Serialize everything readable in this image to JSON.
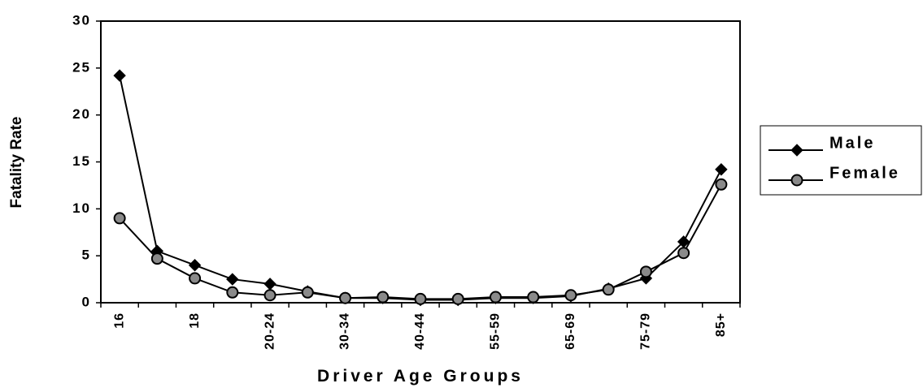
{
  "chart_data": {
    "type": "line",
    "x_label": "Driver Age Groups",
    "y_label": "Fatality Rate",
    "categories": [
      "16",
      null,
      "18",
      null,
      "20-24",
      null,
      "30-34",
      null,
      "40-44",
      null,
      "55-59",
      null,
      "65-69",
      null,
      "75-79",
      null,
      "85+"
    ],
    "series": [
      {
        "name": "Male",
        "color": "#000000",
        "marker": "diamond",
        "values": [
          24.2,
          5.5,
          4.0,
          2.5,
          2.0,
          1.2,
          0.5,
          0.5,
          0.3,
          0.3,
          0.5,
          0.5,
          0.7,
          1.5,
          2.6,
          6.5,
          14.2
        ]
      },
      {
        "name": "Female",
        "color": "#000000",
        "marker": "circle",
        "values": [
          9.0,
          4.7,
          2.6,
          1.1,
          0.8,
          1.1,
          0.5,
          0.6,
          0.4,
          0.4,
          0.6,
          0.6,
          0.8,
          1.4,
          3.3,
          5.3,
          12.6
        ]
      }
    ],
    "ylim": [
      0,
      30
    ],
    "yticks": [
      0,
      5,
      10,
      15,
      20,
      25,
      30
    ],
    "grid": false,
    "legend": "right"
  }
}
